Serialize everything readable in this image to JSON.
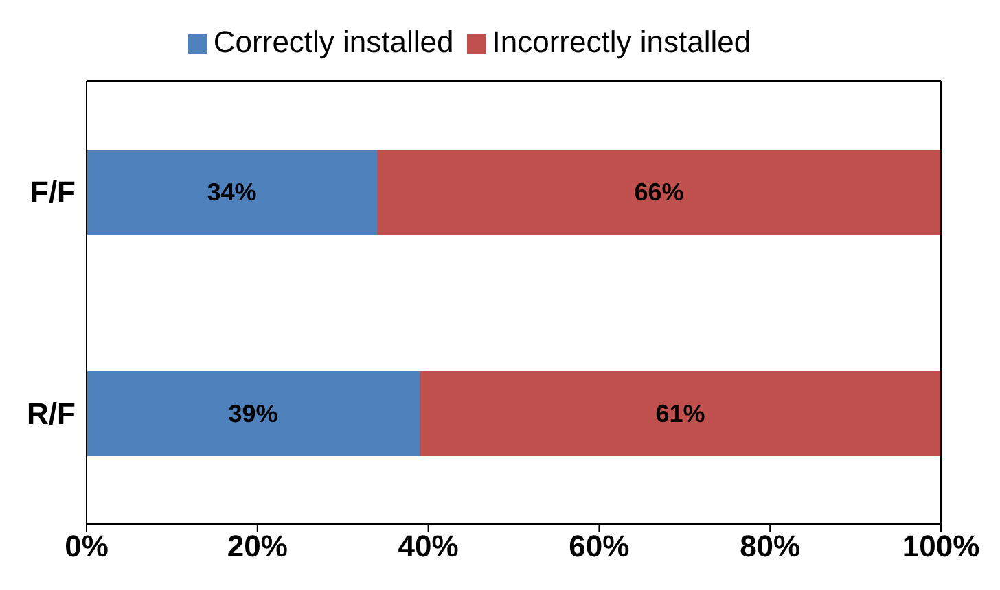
{
  "chart_data": {
    "type": "bar",
    "orientation": "horizontal",
    "stacked": true,
    "categories": [
      "F/F",
      "R/F"
    ],
    "series": [
      {
        "name": "Correctly installed",
        "color": "#4f81bd",
        "values": [
          34,
          39
        ],
        "value_labels": [
          "34%",
          "39%"
        ]
      },
      {
        "name": "Incorrectly installed",
        "color": "#c0504d",
        "values": [
          66,
          61
        ],
        "value_labels": [
          "66%",
          "61%"
        ]
      }
    ],
    "xlim": [
      0,
      100
    ],
    "xticks": [
      {
        "value": 0,
        "label": "0%"
      },
      {
        "value": 20,
        "label": "20%"
      },
      {
        "value": 40,
        "label": "40%"
      },
      {
        "value": 60,
        "label": "60%"
      },
      {
        "value": 80,
        "label": "80%"
      },
      {
        "value": 100,
        "label": "100%"
      }
    ],
    "legend": "top",
    "grid": false
  }
}
